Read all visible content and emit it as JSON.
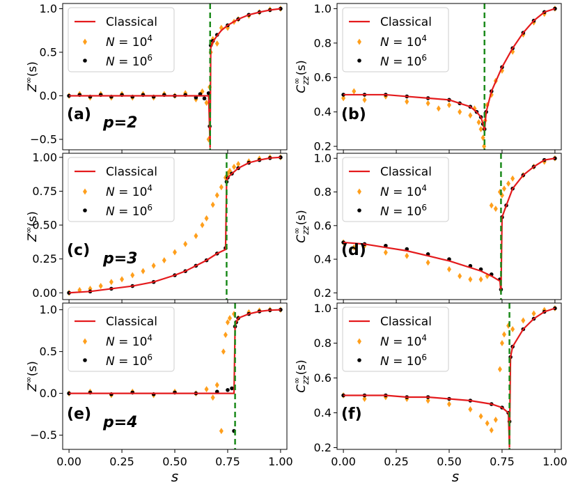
{
  "colors": {
    "classical": "#e41a1c",
    "n4": "#ff9f1c",
    "n6": "#000000",
    "transition": "#1b8a1b"
  },
  "x_axis_label": "s",
  "chart_data": [
    {
      "type": "scatter",
      "panel": "(a)",
      "p_label": "p=2",
      "ylabel": "Z^∞(s)",
      "xlim": [
        -0.03,
        1.03
      ],
      "ylim": [
        -0.62,
        1.06
      ],
      "xticks": [
        0.0,
        0.25,
        0.5,
        0.75,
        1.0
      ],
      "xtick_labels": [
        "0.00",
        "0.25",
        "0.50",
        "0.75",
        "1.00"
      ],
      "yticks": [
        -0.5,
        0.0,
        0.5,
        1.0
      ],
      "ytick_labels": [
        "−0.5",
        "0.0",
        "0.5",
        "1.0"
      ],
      "transition_s": 0.667,
      "legend": [
        "Classical",
        "N = 10^4",
        "N = 10^6"
      ],
      "series": [
        {
          "name": "Classical",
          "x": [
            0.0,
            0.1,
            0.2,
            0.3,
            0.4,
            0.5,
            0.6,
            0.66,
            0.667,
            0.67,
            0.68,
            0.7,
            0.72,
            0.75,
            0.8,
            0.85,
            0.9,
            0.95,
            1.0
          ],
          "y": [
            0.0,
            0.0,
            0.0,
            0.0,
            0.0,
            0.0,
            0.0,
            0.0,
            -0.6,
            0.55,
            0.62,
            0.69,
            0.75,
            0.81,
            0.88,
            0.93,
            0.96,
            0.985,
            1.0
          ]
        },
        {
          "name": "N = 10^4",
          "x": [
            0.0,
            0.05,
            0.1,
            0.15,
            0.2,
            0.25,
            0.3,
            0.35,
            0.4,
            0.45,
            0.5,
            0.55,
            0.6,
            0.63,
            0.65,
            0.66,
            0.665,
            0.67,
            0.675,
            0.68,
            0.7,
            0.72,
            0.75,
            0.78,
            0.8,
            0.85,
            0.9,
            0.95,
            1.0
          ],
          "y": [
            0.0,
            0.02,
            -0.02,
            0.02,
            -0.02,
            0.02,
            -0.02,
            0.02,
            -0.02,
            0.02,
            0.0,
            0.03,
            -0.04,
            0.05,
            -0.08,
            -0.5,
            0.1,
            0.5,
            0.6,
            0.65,
            0.6,
            0.78,
            0.78,
            0.85,
            0.88,
            0.92,
            0.96,
            0.99,
            1.0
          ]
        },
        {
          "name": "N = 10^6",
          "x": [
            0.0,
            0.05,
            0.1,
            0.15,
            0.2,
            0.25,
            0.3,
            0.35,
            0.4,
            0.45,
            0.5,
            0.55,
            0.6,
            0.62,
            0.64,
            0.66,
            0.665,
            0.67,
            0.68,
            0.7,
            0.75,
            0.8,
            0.85,
            0.9,
            0.95,
            1.0
          ],
          "y": [
            0.0,
            0.01,
            -0.01,
            0.01,
            -0.01,
            0.01,
            -0.01,
            0.01,
            -0.01,
            0.01,
            0.0,
            0.01,
            -0.02,
            0.02,
            -0.03,
            0.03,
            -0.35,
            0.58,
            0.63,
            0.7,
            0.81,
            0.88,
            0.93,
            0.96,
            0.985,
            1.0
          ]
        }
      ]
    },
    {
      "type": "scatter",
      "panel": "(b)",
      "p_label": "",
      "ylabel": "C_zz^∞(s)",
      "xlim": [
        -0.03,
        1.03
      ],
      "ylim": [
        0.18,
        1.03
      ],
      "xticks": [
        0.0,
        0.25,
        0.5,
        0.75,
        1.0
      ],
      "xtick_labels": [
        "0.00",
        "0.25",
        "0.50",
        "0.75",
        "1.00"
      ],
      "yticks": [
        0.2,
        0.4,
        0.6,
        0.8,
        1.0
      ],
      "ytick_labels": [
        "0.2",
        "0.4",
        "0.6",
        "0.8",
        "1.0"
      ],
      "transition_s": 0.667,
      "legend": [
        "Classical",
        "N = 10^4",
        "N = 10^6"
      ],
      "series": [
        {
          "name": "Classical",
          "x": [
            0.0,
            0.1,
            0.2,
            0.3,
            0.4,
            0.5,
            0.55,
            0.6,
            0.63,
            0.65,
            0.66,
            0.667,
            0.675,
            0.7,
            0.75,
            0.8,
            0.85,
            0.9,
            0.95,
            1.0
          ],
          "y": [
            0.5,
            0.5,
            0.5,
            0.49,
            0.48,
            0.47,
            0.45,
            0.43,
            0.4,
            0.37,
            0.33,
            0.29,
            0.4,
            0.52,
            0.66,
            0.77,
            0.86,
            0.93,
            0.98,
            1.0
          ]
        },
        {
          "name": "N = 10^4",
          "x": [
            0.0,
            0.05,
            0.1,
            0.2,
            0.3,
            0.4,
            0.45,
            0.5,
            0.55,
            0.6,
            0.62,
            0.64,
            0.65,
            0.66,
            0.665,
            0.67,
            0.68,
            0.7,
            0.72,
            0.75,
            0.8,
            0.85,
            0.9,
            0.95,
            1.0
          ],
          "y": [
            0.48,
            0.52,
            0.47,
            0.49,
            0.46,
            0.45,
            0.42,
            0.44,
            0.4,
            0.38,
            0.42,
            0.34,
            0.3,
            0.25,
            0.2,
            0.35,
            0.44,
            0.5,
            0.58,
            0.64,
            0.75,
            0.85,
            0.92,
            0.97,
            1.0
          ]
        },
        {
          "name": "N = 10^6",
          "x": [
            0.0,
            0.1,
            0.2,
            0.3,
            0.4,
            0.5,
            0.55,
            0.6,
            0.63,
            0.65,
            0.66,
            0.667,
            0.675,
            0.7,
            0.75,
            0.8,
            0.85,
            0.9,
            0.95,
            1.0
          ],
          "y": [
            0.5,
            0.5,
            0.5,
            0.49,
            0.48,
            0.47,
            0.45,
            0.43,
            0.4,
            0.37,
            0.33,
            0.3,
            0.4,
            0.52,
            0.66,
            0.77,
            0.86,
            0.93,
            0.98,
            1.0
          ]
        }
      ]
    },
    {
      "type": "scatter",
      "panel": "(c)",
      "p_label": "p=3",
      "ylabel": "Z^∞(s)",
      "xlim": [
        -0.03,
        1.03
      ],
      "ylim": [
        -0.05,
        1.03
      ],
      "xticks": [
        0.0,
        0.25,
        0.5,
        0.75,
        1.0
      ],
      "xtick_labels": [
        "0.00",
        "0.25",
        "0.50",
        "0.75",
        "1.00"
      ],
      "yticks": [
        0.0,
        0.25,
        0.5,
        0.75,
        1.0
      ],
      "ytick_labels": [
        "0.00",
        "0.25",
        "0.50",
        "0.75",
        "1.00"
      ],
      "transition_s": 0.745,
      "legend": [
        "Classical",
        "N = 10^4",
        "N = 10^6"
      ],
      "series": [
        {
          "name": "Classical",
          "x": [
            0.0,
            0.1,
            0.2,
            0.3,
            0.4,
            0.5,
            0.55,
            0.6,
            0.65,
            0.7,
            0.74,
            0.745,
            0.75,
            0.77,
            0.8,
            0.85,
            0.9,
            0.95,
            1.0
          ],
          "y": [
            0.0,
            0.01,
            0.03,
            0.05,
            0.08,
            0.13,
            0.16,
            0.2,
            0.24,
            0.29,
            0.32,
            0.82,
            0.85,
            0.88,
            0.92,
            0.96,
            0.98,
            0.995,
            1.0
          ]
        },
        {
          "name": "N = 10^4",
          "x": [
            0.0,
            0.05,
            0.1,
            0.15,
            0.2,
            0.25,
            0.3,
            0.35,
            0.4,
            0.45,
            0.5,
            0.55,
            0.6,
            0.63,
            0.65,
            0.68,
            0.7,
            0.72,
            0.74,
            0.75,
            0.76,
            0.78,
            0.8,
            0.85,
            0.9,
            0.95,
            1.0
          ],
          "y": [
            0.0,
            0.02,
            0.03,
            0.05,
            0.08,
            0.1,
            0.13,
            0.16,
            0.2,
            0.24,
            0.3,
            0.36,
            0.42,
            0.5,
            0.55,
            0.65,
            0.72,
            0.78,
            0.85,
            0.88,
            0.9,
            0.93,
            0.95,
            0.97,
            0.99,
            1.0,
            1.0
          ]
        },
        {
          "name": "N = 10^6",
          "x": [
            0.0,
            0.1,
            0.2,
            0.3,
            0.4,
            0.5,
            0.55,
            0.6,
            0.65,
            0.7,
            0.74,
            0.745,
            0.75,
            0.77,
            0.8,
            0.85,
            0.9,
            0.95,
            1.0
          ],
          "y": [
            0.0,
            0.01,
            0.03,
            0.05,
            0.08,
            0.13,
            0.16,
            0.2,
            0.24,
            0.29,
            0.33,
            0.82,
            0.85,
            0.88,
            0.92,
            0.96,
            0.98,
            0.995,
            1.0
          ]
        }
      ]
    },
    {
      "type": "scatter",
      "panel": "(d)",
      "p_label": "",
      "ylabel": "C_zz^∞(s)",
      "xlim": [
        -0.03,
        1.03
      ],
      "ylim": [
        0.16,
        1.03
      ],
      "xticks": [
        0.0,
        0.25,
        0.5,
        0.75,
        1.0
      ],
      "xtick_labels": [
        "0.00",
        "0.25",
        "0.50",
        "0.75",
        "1.00"
      ],
      "yticks": [
        0.2,
        0.4,
        0.6,
        0.8,
        1.0
      ],
      "ytick_labels": [
        "0.2",
        "0.4",
        "0.6",
        "0.8",
        "1.0"
      ],
      "transition_s": 0.745,
      "legend": [
        "Classical",
        "N = 10^4",
        "N = 10^6"
      ],
      "series": [
        {
          "name": "Classical",
          "x": [
            0.0,
            0.1,
            0.2,
            0.3,
            0.4,
            0.5,
            0.6,
            0.65,
            0.7,
            0.74,
            0.745,
            0.75,
            0.77,
            0.8,
            0.85,
            0.9,
            0.95,
            1.0
          ],
          "y": [
            0.5,
            0.49,
            0.47,
            0.45,
            0.42,
            0.39,
            0.35,
            0.33,
            0.3,
            0.27,
            0.2,
            0.65,
            0.72,
            0.82,
            0.9,
            0.95,
            0.99,
            1.0
          ]
        },
        {
          "name": "N = 10^4",
          "x": [
            0.0,
            0.05,
            0.1,
            0.2,
            0.3,
            0.4,
            0.5,
            0.55,
            0.6,
            0.65,
            0.68,
            0.7,
            0.72,
            0.74,
            0.75,
            0.76,
            0.78,
            0.8,
            0.85,
            0.9,
            0.95,
            1.0
          ],
          "y": [
            0.5,
            0.47,
            0.48,
            0.44,
            0.42,
            0.38,
            0.34,
            0.3,
            0.28,
            0.28,
            0.3,
            0.72,
            0.7,
            0.8,
            0.78,
            0.82,
            0.85,
            0.88,
            0.9,
            0.95,
            0.98,
            1.0
          ]
        },
        {
          "name": "N = 10^6",
          "x": [
            0.0,
            0.1,
            0.2,
            0.3,
            0.4,
            0.5,
            0.6,
            0.65,
            0.7,
            0.74,
            0.745,
            0.75,
            0.77,
            0.8,
            0.85,
            0.9,
            0.95,
            1.0
          ],
          "y": [
            0.5,
            0.49,
            0.48,
            0.46,
            0.43,
            0.4,
            0.36,
            0.34,
            0.31,
            0.28,
            0.22,
            0.65,
            0.72,
            0.82,
            0.9,
            0.95,
            0.99,
            1.0
          ]
        }
      ]
    },
    {
      "type": "scatter",
      "panel": "(e)",
      "p_label": "p=4",
      "ylabel": "Z^∞(s)",
      "xlim": [
        -0.03,
        1.03
      ],
      "ylim": [
        -0.67,
        1.08
      ],
      "xticks": [
        0.0,
        0.25,
        0.5,
        0.75,
        1.0
      ],
      "xtick_labels": [
        "0.00",
        "0.25",
        "0.50",
        "0.75",
        "1.00"
      ],
      "yticks": [
        -0.5,
        0.0,
        0.5,
        1.0
      ],
      "ytick_labels": [
        "−0.5",
        "0.0",
        "0.5",
        "1.0"
      ],
      "transition_s": 0.785,
      "legend": [
        "Classical",
        "N = 10^4",
        "N = 10^6"
      ],
      "series": [
        {
          "name": "Classical",
          "x": [
            0.0,
            0.1,
            0.2,
            0.3,
            0.4,
            0.5,
            0.6,
            0.7,
            0.78,
            0.785,
            0.79,
            0.8,
            0.85,
            0.9,
            0.95,
            1.0
          ],
          "y": [
            0.0,
            0.0,
            0.0,
            0.0,
            0.0,
            0.0,
            0.0,
            0.0,
            0.0,
            0.8,
            0.85,
            0.9,
            0.95,
            0.98,
            0.995,
            1.0
          ]
        },
        {
          "name": "N = 10^4",
          "x": [
            0.0,
            0.1,
            0.2,
            0.3,
            0.4,
            0.5,
            0.6,
            0.65,
            0.68,
            0.7,
            0.72,
            0.73,
            0.74,
            0.75,
            0.76,
            0.78,
            0.8,
            0.85,
            0.9,
            0.95,
            1.0
          ],
          "y": [
            0.0,
            0.02,
            -0.02,
            0.02,
            -0.02,
            0.02,
            0.0,
            0.05,
            -0.05,
            0.1,
            -0.45,
            0.5,
            0.7,
            0.85,
            0.9,
            0.95,
            0.9,
            0.97,
            0.99,
            1.0,
            1.0
          ]
        },
        {
          "name": "N = 10^6",
          "x": [
            0.0,
            0.1,
            0.2,
            0.3,
            0.4,
            0.5,
            0.6,
            0.7,
            0.75,
            0.77,
            0.78,
            0.785,
            0.79,
            0.8,
            0.85,
            0.9,
            0.95,
            1.0
          ],
          "y": [
            0.0,
            0.01,
            -0.01,
            0.01,
            -0.01,
            0.01,
            0.0,
            0.02,
            0.04,
            0.06,
            -0.45,
            0.8,
            0.85,
            0.9,
            0.95,
            0.98,
            0.995,
            1.0
          ]
        }
      ]
    },
    {
      "type": "scatter",
      "panel": "(f)",
      "p_label": "",
      "ylabel": "C_zz^∞(s)",
      "xlim": [
        -0.03,
        1.03
      ],
      "ylim": [
        0.19,
        1.03
      ],
      "xticks": [
        0.0,
        0.25,
        0.5,
        0.75,
        1.0
      ],
      "xtick_labels": [
        "0.00",
        "0.25",
        "0.50",
        "0.75",
        "1.00"
      ],
      "yticks": [
        0.2,
        0.4,
        0.6,
        0.8,
        1.0
      ],
      "ytick_labels": [
        "0.2",
        "0.4",
        "0.6",
        "0.8",
        "1.0"
      ],
      "transition_s": 0.785,
      "legend": [
        "Classical",
        "N = 10^4",
        "N = 10^6"
      ],
      "series": [
        {
          "name": "Classical",
          "x": [
            0.0,
            0.1,
            0.2,
            0.3,
            0.4,
            0.5,
            0.6,
            0.7,
            0.75,
            0.78,
            0.785,
            0.79,
            0.8,
            0.85,
            0.9,
            0.95,
            1.0
          ],
          "y": [
            0.5,
            0.5,
            0.5,
            0.49,
            0.49,
            0.48,
            0.47,
            0.45,
            0.43,
            0.4,
            0.2,
            0.72,
            0.78,
            0.88,
            0.94,
            0.98,
            1.0
          ]
        },
        {
          "name": "N = 10^4",
          "x": [
            0.0,
            0.1,
            0.2,
            0.3,
            0.4,
            0.5,
            0.6,
            0.65,
            0.68,
            0.7,
            0.72,
            0.74,
            0.75,
            0.76,
            0.78,
            0.8,
            0.85,
            0.9,
            0.95,
            1.0
          ],
          "y": [
            0.5,
            0.48,
            0.49,
            0.48,
            0.47,
            0.45,
            0.42,
            0.38,
            0.34,
            0.3,
            0.36,
            0.65,
            0.8,
            0.85,
            0.9,
            0.88,
            0.93,
            0.97,
            0.99,
            1.0
          ]
        },
        {
          "name": "N = 10^6",
          "x": [
            0.0,
            0.1,
            0.2,
            0.3,
            0.4,
            0.5,
            0.6,
            0.7,
            0.75,
            0.78,
            0.785,
            0.79,
            0.8,
            0.85,
            0.9,
            0.95,
            1.0
          ],
          "y": [
            0.5,
            0.5,
            0.5,
            0.49,
            0.49,
            0.48,
            0.47,
            0.45,
            0.43,
            0.4,
            0.35,
            0.72,
            0.78,
            0.88,
            0.94,
            0.98,
            1.0
          ]
        }
      ]
    }
  ]
}
